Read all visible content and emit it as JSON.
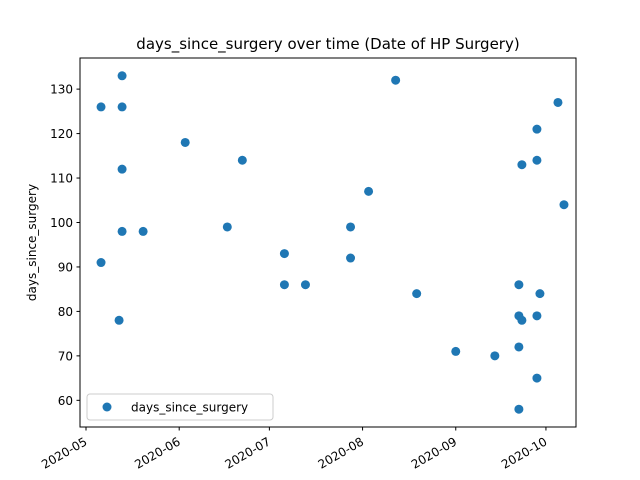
{
  "chart_data": {
    "type": "scatter",
    "title": "days_since_surgery over time (Date of HP Surgery)",
    "xlabel": "",
    "ylabel": "days_since_surgery",
    "x_axis_type": "date",
    "xlim": [
      "2020-04-29",
      "2020-10-11"
    ],
    "ylim": [
      54,
      137
    ],
    "x_ticks": [
      "2020-05",
      "2020-06",
      "2020-07",
      "2020-08",
      "2020-09",
      "2020-10"
    ],
    "y_ticks": [
      60,
      70,
      80,
      90,
      100,
      110,
      120,
      130
    ],
    "grid": false,
    "legend": {
      "position": "lower-left",
      "entries": [
        "days_since_surgery"
      ]
    },
    "series": [
      {
        "name": "days_since_surgery",
        "color": "#1f77b4",
        "marker": "circle",
        "points": [
          {
            "x": "2020-05-06",
            "y": 126
          },
          {
            "x": "2020-05-06",
            "y": 91
          },
          {
            "x": "2020-05-12",
            "y": 78
          },
          {
            "x": "2020-05-13",
            "y": 133
          },
          {
            "x": "2020-05-13",
            "y": 126
          },
          {
            "x": "2020-05-13",
            "y": 112
          },
          {
            "x": "2020-05-13",
            "y": 98
          },
          {
            "x": "2020-05-20",
            "y": 98
          },
          {
            "x": "2020-06-03",
            "y": 118
          },
          {
            "x": "2020-06-17",
            "y": 99
          },
          {
            "x": "2020-06-22",
            "y": 114
          },
          {
            "x": "2020-07-06",
            "y": 93
          },
          {
            "x": "2020-07-06",
            "y": 86
          },
          {
            "x": "2020-07-13",
            "y": 86
          },
          {
            "x": "2020-07-28",
            "y": 99
          },
          {
            "x": "2020-07-28",
            "y": 92
          },
          {
            "x": "2020-08-03",
            "y": 107
          },
          {
            "x": "2020-08-12",
            "y": 132
          },
          {
            "x": "2020-08-19",
            "y": 84
          },
          {
            "x": "2020-09-01",
            "y": 71
          },
          {
            "x": "2020-09-14",
            "y": 70
          },
          {
            "x": "2020-09-22",
            "y": 86
          },
          {
            "x": "2020-09-22",
            "y": 79
          },
          {
            "x": "2020-09-22",
            "y": 72
          },
          {
            "x": "2020-09-22",
            "y": 58
          },
          {
            "x": "2020-09-23",
            "y": 113
          },
          {
            "x": "2020-09-23",
            "y": 78
          },
          {
            "x": "2020-09-28",
            "y": 121
          },
          {
            "x": "2020-09-28",
            "y": 114
          },
          {
            "x": "2020-09-28",
            "y": 79
          },
          {
            "x": "2020-09-28",
            "y": 65
          },
          {
            "x": "2020-09-29",
            "y": 84
          },
          {
            "x": "2020-10-05",
            "y": 127
          },
          {
            "x": "2020-10-07",
            "y": 104
          }
        ]
      }
    ]
  }
}
